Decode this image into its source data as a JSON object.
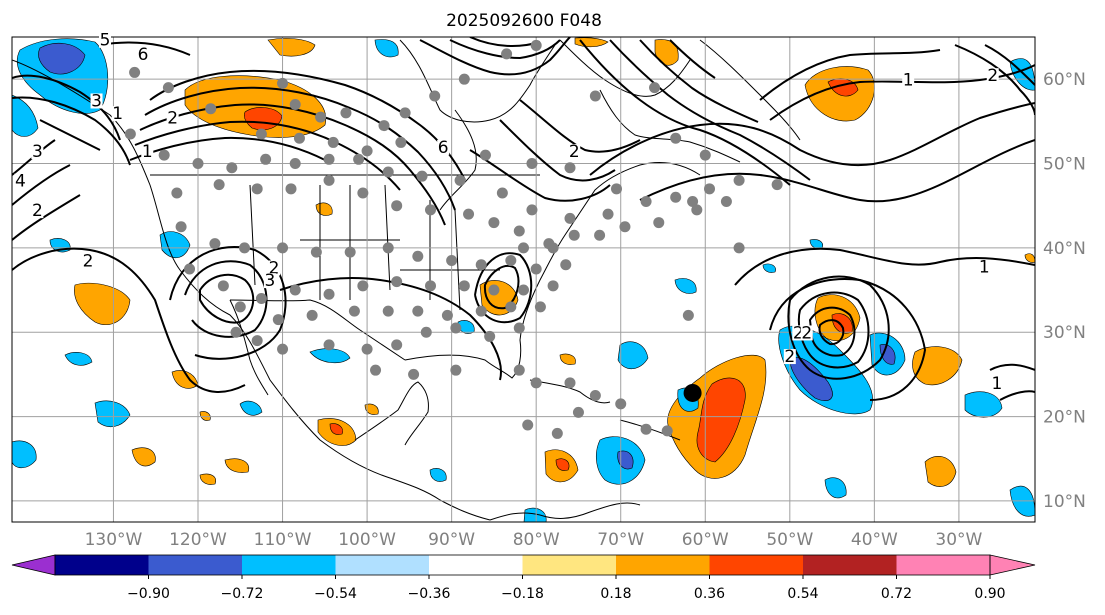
{
  "title": "2025092600 F048",
  "map": {
    "projection": "Cylindrical equidistant",
    "lon_range": [
      -142,
      -21
    ],
    "lat_range": [
      7.5,
      65
    ],
    "lon_ticks": [
      {
        "lon": -130,
        "label": "130°W"
      },
      {
        "lon": -120,
        "label": "120°W"
      },
      {
        "lon": -110,
        "label": "110°W"
      },
      {
        "lon": -100,
        "label": "100°W"
      },
      {
        "lon": -90,
        "label": "90°W"
      },
      {
        "lon": -80,
        "label": "80°W"
      },
      {
        "lon": -70,
        "label": "70°W"
      },
      {
        "lon": -60,
        "label": "60°W"
      },
      {
        "lon": -50,
        "label": "50°W"
      },
      {
        "lon": -40,
        "label": "40°W"
      },
      {
        "lon": -30,
        "label": "30°W"
      }
    ],
    "lat_ticks": [
      {
        "lat": 60,
        "label": "60°N"
      },
      {
        "lat": 50,
        "label": "50°N"
      },
      {
        "lat": 40,
        "label": "40°N"
      },
      {
        "lat": 30,
        "label": "30°N"
      },
      {
        "lat": 20,
        "label": "20°N"
      },
      {
        "lat": 10,
        "label": "10°N"
      }
    ],
    "gridlines": true,
    "station_color": "#808080",
    "marker_color": "#000000",
    "storm_marker": {
      "lon": -61.5,
      "lat": 22.8
    }
  },
  "contour_labels": [
    {
      "text": "6",
      "lon": -126.5,
      "lat": 62.5
    },
    {
      "text": "5",
      "lon": -131,
      "lat": 64.2
    },
    {
      "text": "3",
      "lon": -132,
      "lat": 57
    },
    {
      "text": "1",
      "lon": -129.5,
      "lat": 55.5
    },
    {
      "text": "2",
      "lon": -123,
      "lat": 55
    },
    {
      "text": "1",
      "lon": -126,
      "lat": 51
    },
    {
      "text": "3",
      "lon": -139,
      "lat": 51
    },
    {
      "text": "4",
      "lon": -141,
      "lat": 47.5
    },
    {
      "text": "2",
      "lon": -139,
      "lat": 44
    },
    {
      "text": "2",
      "lon": -133,
      "lat": 38
    },
    {
      "text": "2",
      "lon": -111,
      "lat": 37.2
    },
    {
      "text": "3",
      "lon": -111.5,
      "lat": 35.7
    },
    {
      "text": "6",
      "lon": -91,
      "lat": 51.5
    },
    {
      "text": "2",
      "lon": -75.5,
      "lat": 51
    },
    {
      "text": "1",
      "lon": -36,
      "lat": 59.5
    },
    {
      "text": "2",
      "lon": -26,
      "lat": 60
    },
    {
      "text": "1",
      "lon": -27,
      "lat": 37.3
    },
    {
      "text": "2",
      "lon": -49,
      "lat": 29.5
    },
    {
      "text": "2",
      "lon": -50,
      "lat": 26.7
    },
    {
      "text": "2",
      "lon": -48,
      "lat": 29.5
    },
    {
      "text": "1",
      "lon": -25.5,
      "lat": 23.5
    }
  ],
  "colorbar": {
    "levels": [
      -0.9,
      -0.72,
      -0.54,
      -0.36,
      -0.18,
      0.18,
      0.36,
      0.54,
      0.72,
      0.9
    ],
    "tick_labels": [
      "−0.90",
      "−0.72",
      "−0.54",
      "−0.36",
      "−0.18",
      "0.18",
      "0.36",
      "0.54",
      "0.72",
      "0.90"
    ],
    "colors": [
      "#9b2fd0",
      "#00008b",
      "#3b5bcf",
      "#00bfff",
      "#b0e0ff",
      "#ffffff",
      "#ffe680",
      "#ffa500",
      "#ff4500",
      "#b22222",
      "#ff82b4"
    ],
    "extend": "both"
  }
}
